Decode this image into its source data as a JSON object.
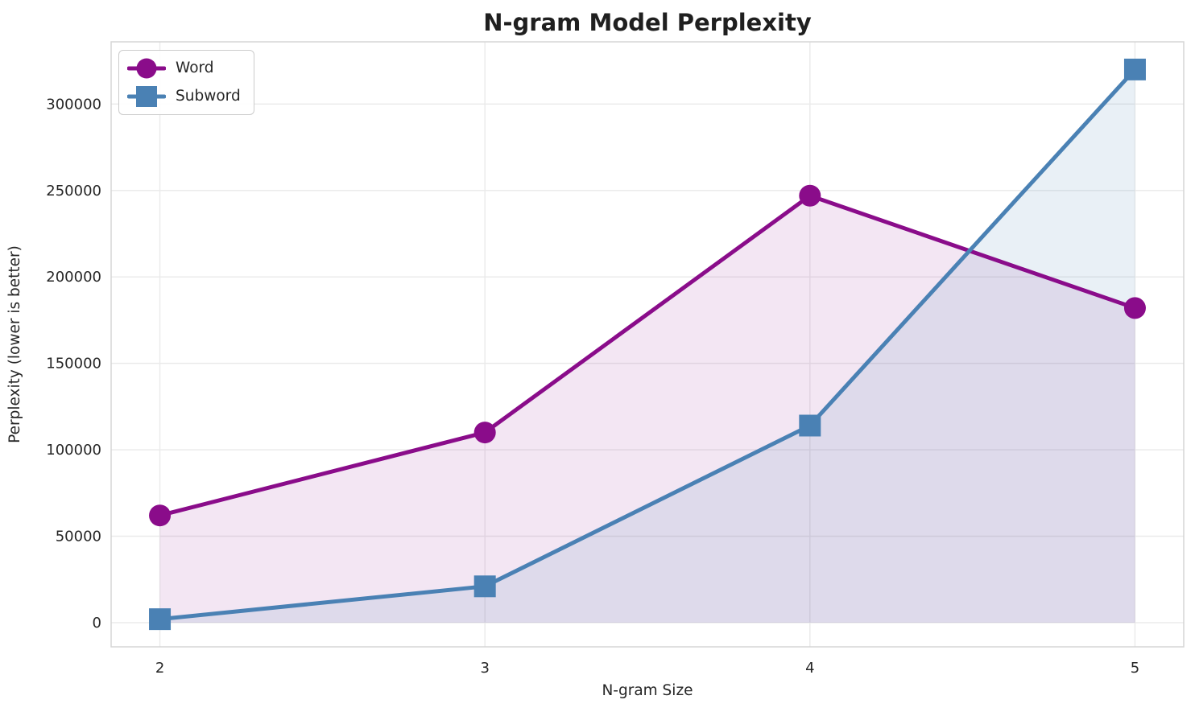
{
  "chart_data": {
    "type": "line",
    "title": "N-gram Model Perplexity",
    "xlabel": "N-gram Size",
    "ylabel": "Perplexity (lower is better)",
    "x": [
      2,
      3,
      4,
      5
    ],
    "series": [
      {
        "name": "Word",
        "values": [
          62000,
          110000,
          247000,
          182000
        ],
        "color": "#8A0C8A",
        "marker": "circle",
        "fill_alpha": 0.1
      },
      {
        "name": "Subword",
        "values": [
          2000,
          21000,
          114000,
          320000
        ],
        "color": "#4A81B4",
        "marker": "square",
        "fill_alpha": 0.12
      }
    ],
    "area_fill_baseline": 0,
    "xlim": [
      1.85,
      5.15
    ],
    "ylim": [
      -14000,
      336000
    ],
    "xticks": [
      2,
      3,
      4,
      5
    ],
    "xtick_labels": [
      "2",
      "3",
      "4",
      "5"
    ],
    "yticks": [
      0,
      50000,
      100000,
      150000,
      200000,
      250000,
      300000
    ],
    "ytick_labels": [
      "0",
      "50000",
      "100000",
      "150000",
      "200000",
      "250000",
      "300000"
    ],
    "grid": true,
    "legend": {
      "location": "upper left",
      "items": [
        "Word",
        "Subword"
      ]
    }
  },
  "colors": {
    "background": "#ffffff",
    "grid": "#eaeaea",
    "spine": "#d5d5d5",
    "text": "#262626",
    "title": "#1f1f1f"
  }
}
